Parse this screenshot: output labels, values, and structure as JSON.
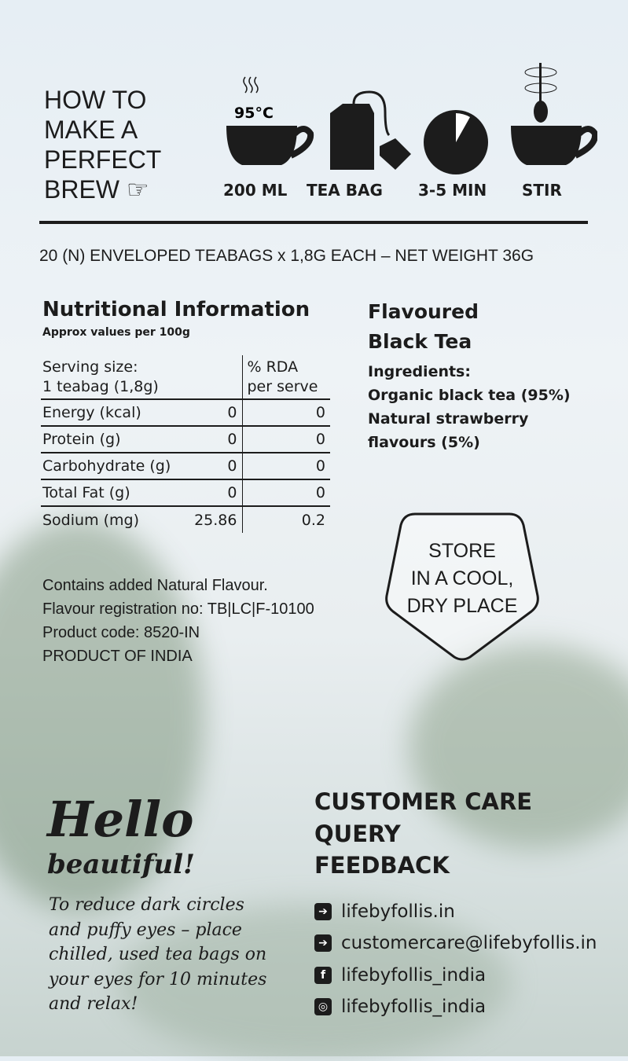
{
  "brew": {
    "title_lines": [
      "HOW TO",
      "MAKE A",
      "PERFECT",
      "BREW"
    ],
    "pointer_icon": "pointing-hand-icon",
    "temperature": "95°C",
    "steps": [
      {
        "label": "200 ML",
        "icon": "cup-icon"
      },
      {
        "label": "TEA BAG",
        "icon": "teabag-icon"
      },
      {
        "label": "3-5 MIN",
        "icon": "timer-icon"
      },
      {
        "label": "STIR",
        "icon": "stir-cup-icon"
      }
    ]
  },
  "net_weight": "20 (N) ENVELOPED TEABAGS x 1,8G EACH – NET WEIGHT 36G",
  "nutrition": {
    "title": "Nutritional Information",
    "subtitle": "Approx values per 100g",
    "serving_label_1": "Serving size:",
    "serving_label_2": "1 teabag (1,8g)",
    "rda_label_1": "% RDA",
    "rda_label_2": "per serve",
    "rows": [
      {
        "name": "Energy (kcal)",
        "value": "0",
        "rda": "0"
      },
      {
        "name": "Protein (g)",
        "value": "0",
        "rda": "0"
      },
      {
        "name": "Carbohydrate (g)",
        "value": "0",
        "rda": "0"
      },
      {
        "name": "Total Fat (g)",
        "value": "0",
        "rda": "0"
      },
      {
        "name": "Sodium (mg)",
        "value": "25.86",
        "rda": "0.2"
      }
    ]
  },
  "product": {
    "title_1": "Flavoured",
    "title_2": "Black Tea",
    "ingredients_label": "Ingredients:",
    "ingredients": [
      "Organic black tea (95%)",
      "Natural strawberry",
      "flavours (5%)"
    ]
  },
  "storage": [
    "STORE",
    "IN A COOL,",
    "DRY PLACE"
  ],
  "info": [
    "Contains added Natural Flavour.",
    "Flavour registration no: TB|LC|F-10100",
    "Product code: 8520-IN",
    "PRODUCT OF INDIA"
  ],
  "hello": {
    "title": "Hello",
    "subtitle": "beautiful!",
    "body": [
      "To reduce dark circles",
      "and puffy eyes – place",
      "chilled, used tea bags on",
      "your eyes for 10 minutes",
      "and relax!"
    ]
  },
  "care": {
    "heading": [
      "CUSTOMER CARE",
      "QUERY",
      "FEEDBACK"
    ],
    "links": [
      {
        "icon": "arrow-icon",
        "glyph": "➔",
        "text": "lifebyfollis.in"
      },
      {
        "icon": "arrow-icon",
        "glyph": "➔",
        "text": "customercare@lifebyfollis.in"
      },
      {
        "icon": "facebook-icon",
        "glyph": "f",
        "text": "lifebyfollis_india"
      },
      {
        "icon": "instagram-icon",
        "glyph": "◎",
        "text": "lifebyfollis_india"
      }
    ]
  }
}
